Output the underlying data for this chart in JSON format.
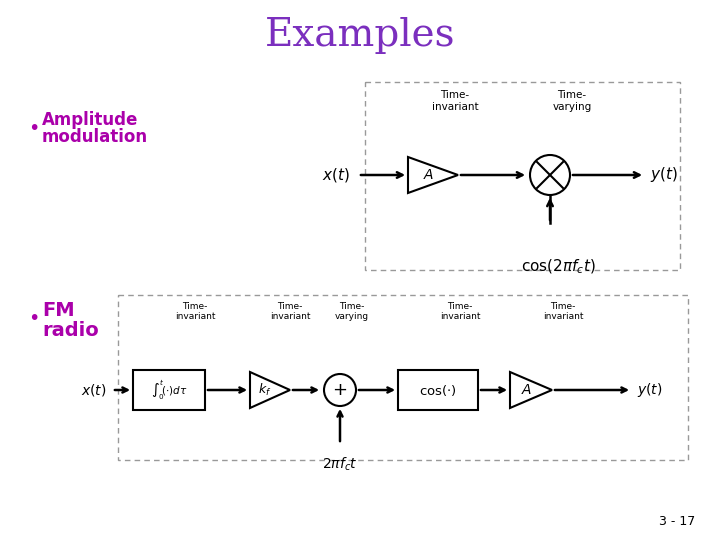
{
  "title": "Examples",
  "title_color": "#7B2FBE",
  "title_fontsize": 28,
  "bg_color": "#FFFFFF",
  "bullet_color": "#AA00AA",
  "bullet1_line1": "Amplitude",
  "bullet1_line2": "modulation",
  "bullet2_line1": "FM",
  "bullet2_line2": "radio",
  "slide_num": "3 - 17",
  "box_dash_color": "#999999",
  "black": "#000000"
}
